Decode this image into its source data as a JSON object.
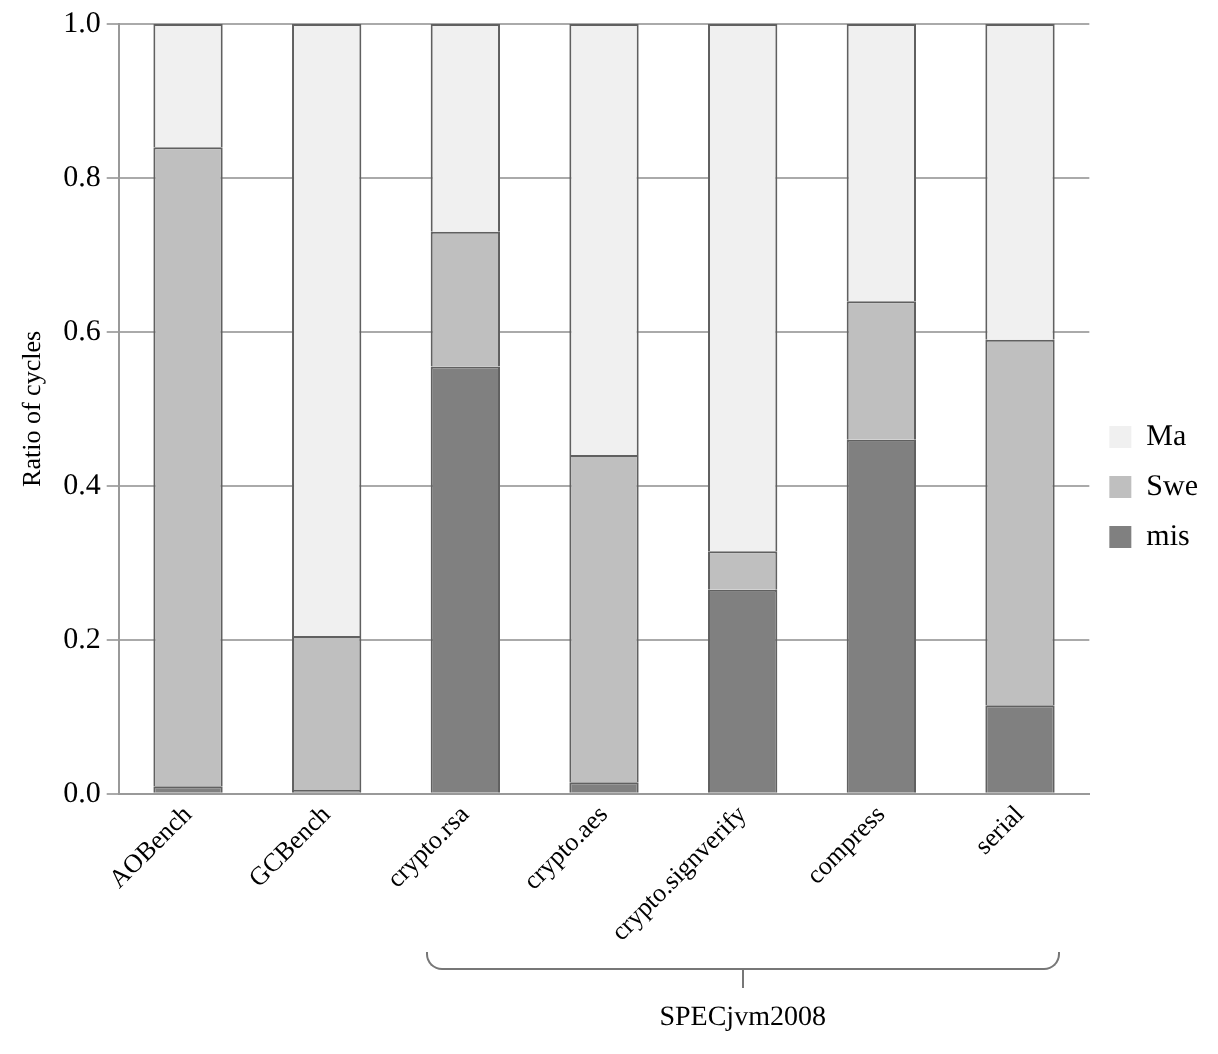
{
  "chart_data": {
    "type": "bar",
    "stacked": true,
    "ylabel": "Ratio of cycles",
    "categories": [
      "AOBench",
      "GCBench",
      "crypto.rsa",
      "crypto.aes",
      "crypto.signverify",
      "compress",
      "serial"
    ],
    "series": [
      {
        "name": "mis",
        "color": "#808080",
        "values": [
          0.01,
          0.005,
          0.555,
          0.015,
          0.265,
          0.46,
          0.115
        ]
      },
      {
        "name": "Swe",
        "color": "#bfbfbf",
        "values": [
          0.83,
          0.2,
          0.175,
          0.425,
          0.05,
          0.18,
          0.475
        ]
      },
      {
        "name": "Ma",
        "color": "#f0f0f0",
        "values": [
          0.16,
          0.795,
          0.27,
          0.56,
          0.685,
          0.36,
          0.41
        ]
      }
    ],
    "ylim": [
      0,
      1
    ],
    "yticks": [
      {
        "value": 0,
        "label": "0.0"
      },
      {
        "value": 0.2,
        "label": "0.2"
      },
      {
        "value": 0.4,
        "label": "0.4"
      },
      {
        "value": 0.6,
        "label": "0.6"
      },
      {
        "value": 0.8,
        "label": "0.8"
      },
      {
        "value": 1,
        "label": "1.0"
      }
    ],
    "grid": "y",
    "legend": "right",
    "annotations": [
      "SPECjvm2008"
    ]
  }
}
